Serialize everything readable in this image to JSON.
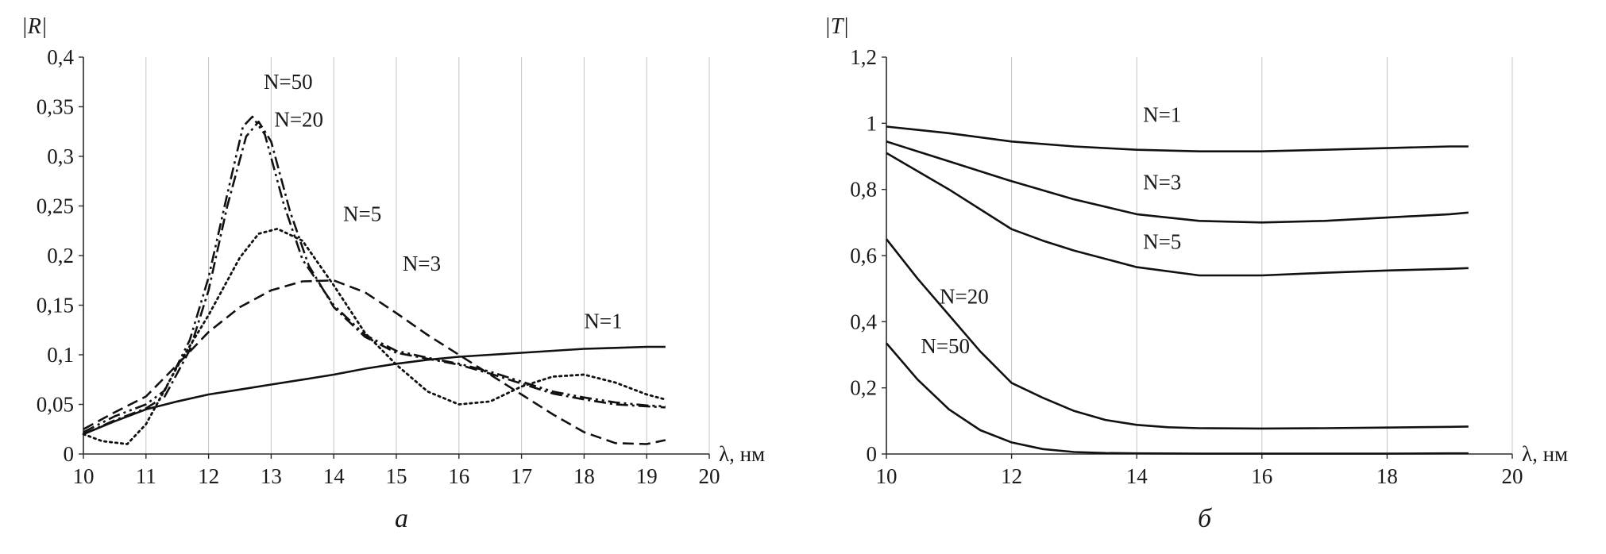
{
  "figures": [
    {
      "caption": "а"
    },
    {
      "caption": "б"
    }
  ],
  "chart_data": [
    {
      "type": "line",
      "title": "|R|",
      "ylabel": "|R|",
      "xlabel": "λ, нм",
      "xlim": [
        10,
        20
      ],
      "ylim": [
        0,
        0.4
      ],
      "xticks": [
        10,
        11,
        12,
        13,
        14,
        15,
        16,
        17,
        18,
        19,
        20
      ],
      "xtick_labels": [
        "10",
        "11",
        "12",
        "13",
        "14",
        "15",
        "16",
        "17",
        "18",
        "19",
        "20"
      ],
      "yticks": [
        0,
        0.05,
        0.1,
        0.15,
        0.2,
        0.25,
        0.3,
        0.35,
        0.4
      ],
      "ytick_labels": [
        "0",
        "0,05",
        "0,1",
        "0,15",
        "0,2",
        "0,25",
        "0,3",
        "0,35",
        "0,4"
      ],
      "grid": "vertical",
      "legend_position": "inline-annotations",
      "series": [
        {
          "name": "N=50",
          "style": "dashdotdot",
          "label_pos": [
            12.88,
            0.368
          ],
          "x": [
            10,
            10.5,
            11,
            11.3,
            11.7,
            12,
            12.3,
            12.55,
            12.7,
            12.9,
            13.2,
            13.5,
            14,
            14.5,
            15,
            15.5,
            16,
            16.5,
            17,
            17.5,
            18,
            18.5,
            19,
            19.3
          ],
          "y": [
            0.022,
            0.038,
            0.05,
            0.064,
            0.115,
            0.178,
            0.262,
            0.33,
            0.34,
            0.322,
            0.252,
            0.196,
            0.15,
            0.12,
            0.104,
            0.097,
            0.091,
            0.083,
            0.073,
            0.063,
            0.057,
            0.052,
            0.049,
            0.048
          ],
          "label_pos_note": "annotation above peak"
        },
        {
          "name": "N=20",
          "style": "dashdot",
          "label_pos": [
            13.05,
            0.33
          ],
          "x": [
            10,
            10.5,
            11,
            11.3,
            11.7,
            12,
            12.3,
            12.6,
            12.8,
            13,
            13.3,
            13.6,
            14,
            14.5,
            15,
            15.5,
            16,
            16.5,
            17,
            17.5,
            18,
            18.5,
            19,
            19.3
          ],
          "y": [
            0.02,
            0.034,
            0.046,
            0.058,
            0.105,
            0.165,
            0.25,
            0.32,
            0.335,
            0.315,
            0.245,
            0.19,
            0.148,
            0.118,
            0.102,
            0.096,
            0.09,
            0.081,
            0.071,
            0.061,
            0.055,
            0.05,
            0.048,
            0.047
          ]
        },
        {
          "name": "N=5",
          "style": "dotted",
          "label_pos": [
            14.15,
            0.235
          ],
          "x": [
            10,
            10.3,
            10.7,
            11,
            11.5,
            12,
            12.5,
            12.8,
            13.1,
            13.5,
            14,
            14.5,
            15,
            15.5,
            16,
            16.5,
            17,
            17.5,
            18,
            18.5,
            19,
            19.3
          ],
          "y": [
            0.02,
            0.013,
            0.01,
            0.03,
            0.088,
            0.14,
            0.198,
            0.222,
            0.227,
            0.215,
            0.17,
            0.122,
            0.09,
            0.063,
            0.05,
            0.053,
            0.068,
            0.078,
            0.08,
            0.072,
            0.06,
            0.055
          ]
        },
        {
          "name": "N=3",
          "style": "dashed",
          "label_pos": [
            15.1,
            0.185
          ],
          "x": [
            10,
            10.5,
            11,
            11.5,
            12,
            12.5,
            13,
            13.5,
            14,
            14.5,
            15,
            15.5,
            16,
            16.5,
            17,
            17.5,
            18,
            18.5,
            19,
            19.3
          ],
          "y": [
            0.025,
            0.042,
            0.058,
            0.09,
            0.123,
            0.148,
            0.165,
            0.174,
            0.175,
            0.163,
            0.142,
            0.12,
            0.1,
            0.08,
            0.06,
            0.04,
            0.022,
            0.011,
            0.01,
            0.014
          ]
        },
        {
          "name": "N=1",
          "style": "solid",
          "label_pos": [
            18.0,
            0.127
          ],
          "x": [
            10,
            10.5,
            11,
            11.5,
            12,
            12.5,
            13,
            13.5,
            14,
            14.5,
            15,
            15.5,
            16,
            16.5,
            17,
            17.5,
            18,
            18.5,
            19,
            19.3
          ],
          "y": [
            0.02,
            0.033,
            0.045,
            0.053,
            0.06,
            0.065,
            0.07,
            0.075,
            0.08,
            0.086,
            0.091,
            0.095,
            0.098,
            0.1,
            0.102,
            0.104,
            0.106,
            0.107,
            0.108,
            0.108
          ]
        }
      ]
    },
    {
      "type": "line",
      "title": "|T|",
      "ylabel": "|T|",
      "xlabel": "λ, нм",
      "xlim": [
        10,
        20
      ],
      "ylim": [
        0,
        1.2
      ],
      "xticks": [
        10,
        12,
        14,
        16,
        18,
        20
      ],
      "xtick_labels": [
        "10",
        "12",
        "14",
        "16",
        "18",
        "20"
      ],
      "yticks": [
        0,
        0.2,
        0.4,
        0.6,
        0.8,
        1,
        1.2
      ],
      "ytick_labels": [
        "0",
        "0,2",
        "0,4",
        "0,6",
        "0,8",
        "1",
        "1,2"
      ],
      "grid": "vertical",
      "legend_position": "inline-annotations",
      "series": [
        {
          "name": "N=1",
          "style": "solid",
          "label_pos": [
            14.1,
            1.005
          ],
          "x": [
            10,
            11,
            12,
            13,
            14,
            15,
            16,
            17,
            18,
            19,
            19.3
          ],
          "y": [
            0.99,
            0.97,
            0.945,
            0.93,
            0.92,
            0.915,
            0.915,
            0.92,
            0.925,
            0.93,
            0.93
          ]
        },
        {
          "name": "N=3",
          "style": "solid",
          "label_pos": [
            14.1,
            0.8
          ],
          "x": [
            10,
            11,
            12,
            13,
            14,
            15,
            16,
            17,
            18,
            19,
            19.3
          ],
          "y": [
            0.945,
            0.885,
            0.825,
            0.77,
            0.725,
            0.705,
            0.7,
            0.705,
            0.715,
            0.725,
            0.73
          ]
        },
        {
          "name": "N=5",
          "style": "solid",
          "label_pos": [
            14.1,
            0.62
          ],
          "x": [
            10,
            11,
            12,
            12.5,
            13,
            14,
            15,
            16,
            17,
            18,
            19,
            19.3
          ],
          "y": [
            0.91,
            0.8,
            0.68,
            0.645,
            0.615,
            0.565,
            0.54,
            0.54,
            0.548,
            0.555,
            0.56,
            0.562
          ]
        },
        {
          "name": "N=20",
          "style": "solid",
          "label_pos": [
            10.85,
            0.455
          ],
          "x": [
            10,
            10.5,
            11,
            11.5,
            12,
            12.5,
            13,
            13.5,
            14,
            14.5,
            15,
            16,
            17,
            18,
            19,
            19.3
          ],
          "y": [
            0.65,
            0.53,
            0.42,
            0.31,
            0.215,
            0.17,
            0.13,
            0.103,
            0.088,
            0.081,
            0.078,
            0.077,
            0.078,
            0.08,
            0.082,
            0.083
          ]
        },
        {
          "name": "N=50",
          "style": "solid",
          "label_pos": [
            10.55,
            0.305
          ],
          "x": [
            10,
            10.5,
            11,
            11.5,
            12,
            12.5,
            13,
            13.5,
            14,
            15,
            16,
            17,
            18,
            19,
            19.3
          ],
          "y": [
            0.335,
            0.225,
            0.135,
            0.072,
            0.035,
            0.015,
            0.006,
            0.003,
            0.002,
            0.001,
            0.001,
            0.001,
            0.001,
            0.002,
            0.002
          ]
        }
      ]
    }
  ],
  "colors": {
    "curve": "#111111",
    "axis": "#2b2b2b",
    "grid": "#c4c4c4",
    "text": "#1a1a1a"
  }
}
